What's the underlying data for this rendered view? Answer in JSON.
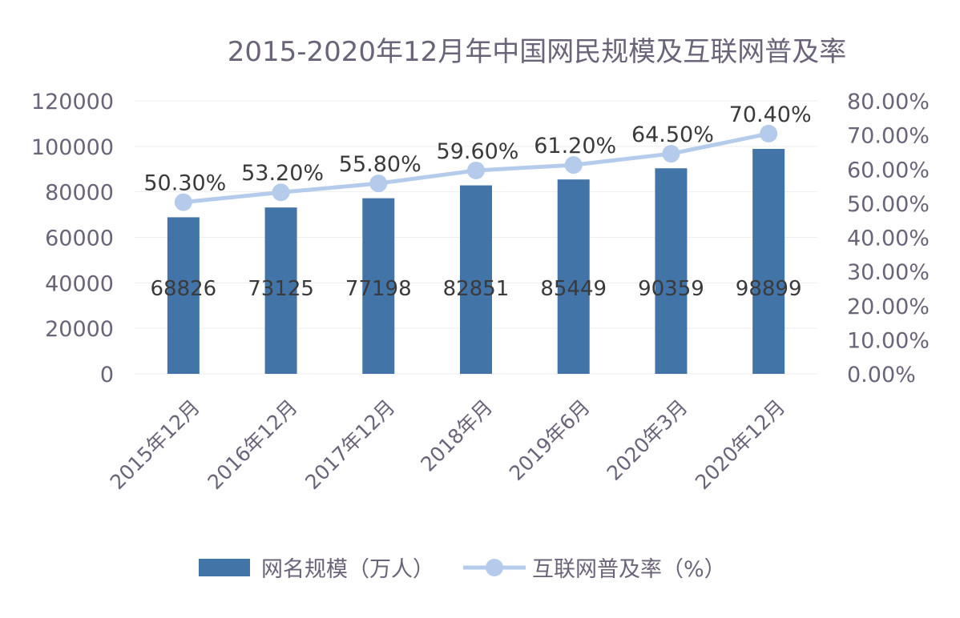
{
  "chart_data": {
    "type": "bar+line",
    "title": "2015-2020年12月年中国网民规模及互联网普及率",
    "categories": [
      "2015年12月",
      "2016年12月",
      "2017年12月",
      "2018年月",
      "2019年6月",
      "2020年3月",
      "2020年12月"
    ],
    "series": [
      {
        "name": "网名规模（万人）",
        "type": "bar",
        "axis": "left",
        "values": [
          68826,
          73125,
          77198,
          82851,
          85449,
          90359,
          98899
        ],
        "labels": [
          "68826",
          "73125",
          "77198",
          "82851",
          "85449",
          "90359",
          "98899"
        ]
      },
      {
        "name": "互联网普及率（%）",
        "type": "line",
        "axis": "right",
        "values": [
          50.3,
          53.2,
          55.8,
          59.6,
          61.2,
          64.5,
          70.4
        ],
        "labels": [
          "50.30%",
          "53.20%",
          "55.80%",
          "59.60%",
          "61.20%",
          "64.50%",
          "70.40%"
        ]
      }
    ],
    "y_left": {
      "min": 0,
      "max": 120000,
      "ticks": [
        "0",
        "20000",
        "40000",
        "60000",
        "80000",
        "100000",
        "120000"
      ]
    },
    "y_right": {
      "min": 0,
      "max": 80,
      "ticks": [
        "0.00%",
        "10.00%",
        "20.00%",
        "30.00%",
        "40.00%",
        "50.00%",
        "60.00%",
        "70.00%",
        "80.00%"
      ]
    },
    "legend_position": "bottom",
    "grid": true,
    "colors": {
      "bar": "#4374a8",
      "line": "#b4cbeb",
      "text": "#6b6478"
    }
  }
}
